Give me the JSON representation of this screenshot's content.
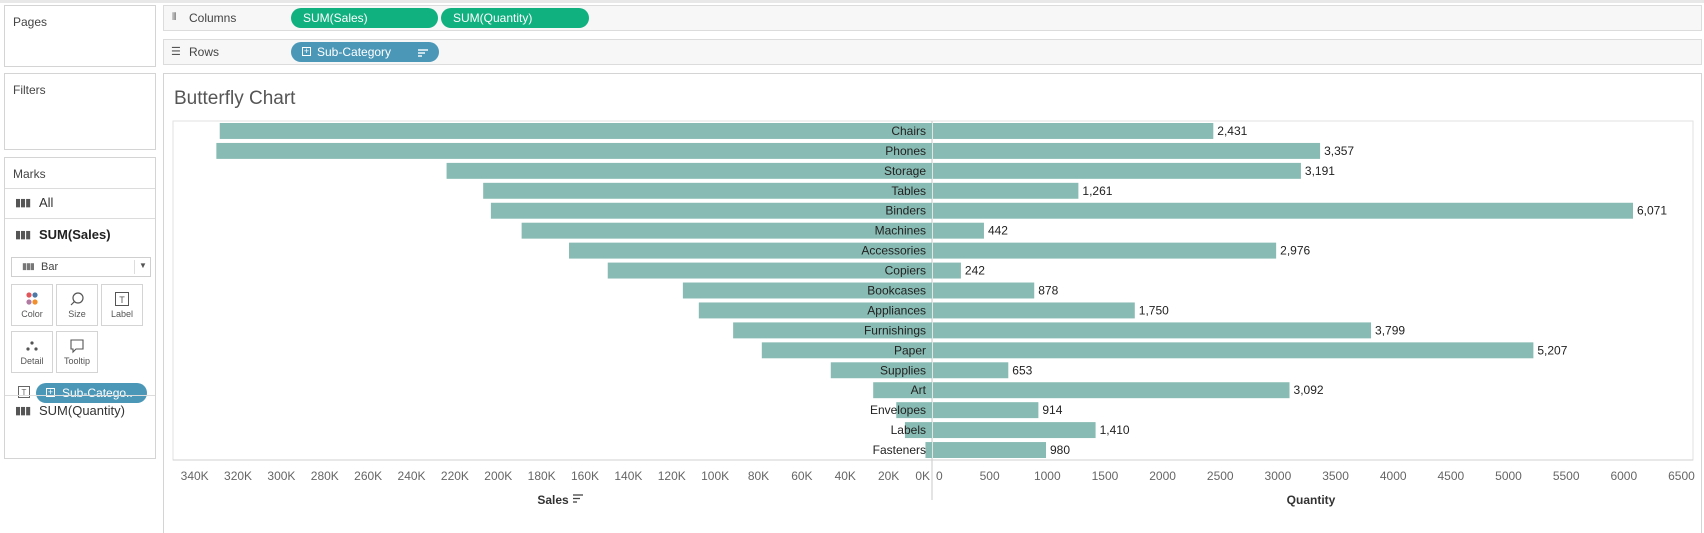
{
  "sidebar": {
    "pages_title": "Pages",
    "filters_title": "Filters",
    "marks_title": "Marks",
    "marks_all": "All",
    "marks_sales": "SUM(Sales)",
    "mark_type": "Bar",
    "buttons": {
      "color": "Color",
      "size": "Size",
      "label": "Label",
      "detail": "Detail",
      "tooltip": "Tooltip"
    },
    "pill_label": "Sub-Catego..",
    "marks_quantity": "SUM(Quantity)"
  },
  "shelves": {
    "columns_label": "Columns",
    "columns_pills": [
      "SUM(Sales)",
      "SUM(Quantity)"
    ],
    "rows_label": "Rows",
    "rows_pill": "Sub-Category"
  },
  "colors": {
    "bar": "#88bbb3",
    "pill_green": "#10b07f",
    "pill_blue": "#4a97b8"
  },
  "chart_data": {
    "type": "bar",
    "title": "Butterfly Chart",
    "categories": [
      "Chairs",
      "Phones",
      "Storage",
      "Tables",
      "Binders",
      "Machines",
      "Accessories",
      "Copiers",
      "Bookcases",
      "Appliances",
      "Furnishings",
      "Paper",
      "Supplies",
      "Art",
      "Envelopes",
      "Labels",
      "Fasteners"
    ],
    "series": [
      {
        "name": "Sales",
        "values": [
          328449,
          330007,
          223844,
          206966,
          203413,
          189239,
          167380,
          149528,
          114880,
          107532,
          91705,
          78479,
          46674,
          27119,
          16476,
          12486,
          3024
        ]
      },
      {
        "name": "Quantity",
        "values": [
          2431,
          3357,
          3191,
          1261,
          6071,
          442,
          2976,
          242,
          878,
          1750,
          3799,
          5207,
          653,
          3092,
          914,
          1410,
          980
        ]
      }
    ],
    "value_labels": [
      "2,431",
      "3,357",
      "3,191",
      "1,261",
      "6,071",
      "442",
      "2,976",
      "242",
      "878",
      "1,750",
      "3,799",
      "5,207",
      "653",
      "3,092",
      "914",
      "1,410",
      "980"
    ],
    "sales_axis": {
      "label": "Sales",
      "range": [
        0,
        350000
      ],
      "reversed": true,
      "ticks": [
        "340K",
        "320K",
        "300K",
        "280K",
        "260K",
        "240K",
        "220K",
        "200K",
        "180K",
        "160K",
        "140K",
        "120K",
        "100K",
        "80K",
        "60K",
        "40K",
        "20K",
        "0K"
      ],
      "tick_values": [
        340000,
        320000,
        300000,
        280000,
        260000,
        240000,
        220000,
        200000,
        180000,
        160000,
        140000,
        120000,
        100000,
        80000,
        60000,
        40000,
        20000,
        0
      ]
    },
    "quantity_axis": {
      "label": "Quantity",
      "range": [
        0,
        6600
      ],
      "ticks": [
        "0",
        "500",
        "1000",
        "1500",
        "2000",
        "2500",
        "3000",
        "3500",
        "4000",
        "4500",
        "5000",
        "5500",
        "6000",
        "6500"
      ],
      "tick_values": [
        0,
        500,
        1000,
        1500,
        2000,
        2500,
        3000,
        3500,
        4000,
        4500,
        5000,
        5500,
        6000,
        6500
      ]
    }
  }
}
